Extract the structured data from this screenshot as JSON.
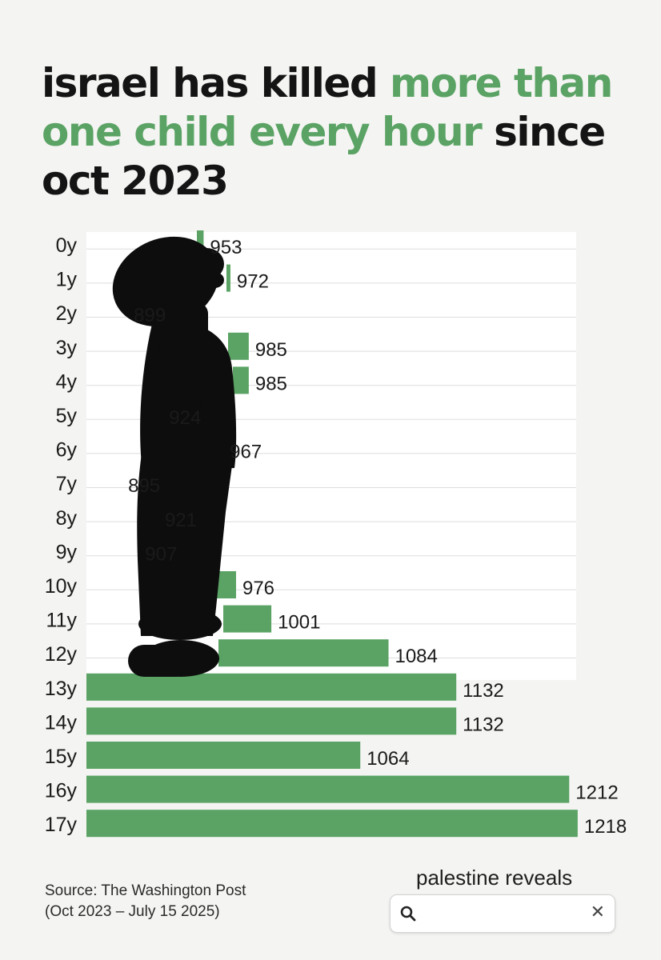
{
  "header": {
    "title_part1": "israel has killed ",
    "title_part2": "more than one child every hour",
    "title_part3": " since oct 2023"
  },
  "chart_data": {
    "type": "bar",
    "orientation": "horizontal",
    "categories": [
      "0y",
      "1y",
      "2y",
      "3y",
      "4y",
      "5y",
      "6y",
      "7y",
      "8y",
      "9y",
      "10y",
      "11y",
      "12y",
      "13y",
      "14y",
      "15y",
      "16y",
      "17y"
    ],
    "values": [
      953,
      972,
      899,
      985,
      985,
      924,
      967,
      895,
      921,
      907,
      976,
      1001,
      1084,
      1132,
      1132,
      1064,
      1212,
      1218
    ],
    "title": "",
    "xlabel": "",
    "ylabel": "",
    "grid": true,
    "bar_color": "#5aa364",
    "silhouette_color": "#0d0d0d"
  },
  "footer": {
    "source_line1": "Source: The Washington Post",
    "source_line2": "(Oct 2023 – July 15 2025)",
    "brand": "palestine reveals",
    "search_icon": "search-icon",
    "clear_icon": "close-icon",
    "clear_glyph": "✕"
  }
}
